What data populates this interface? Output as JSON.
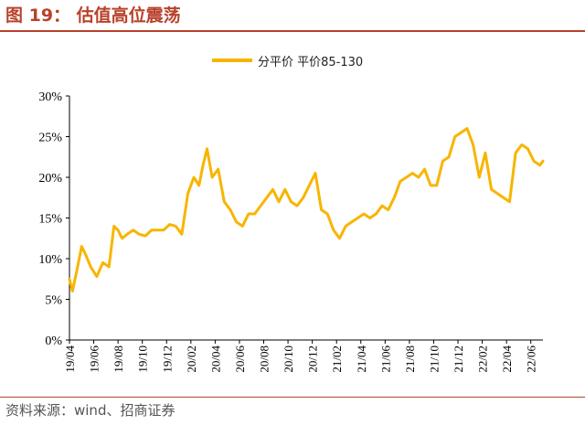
{
  "figure": {
    "title": "图 19： 估值高位震荡",
    "source": "资料来源：wind、招商证券"
  },
  "chart_data": {
    "type": "line",
    "title": "",
    "xlabel": "",
    "ylabel": "",
    "ylim": [
      0,
      30
    ],
    "yticks": [
      "0%",
      "5%",
      "10%",
      "15%",
      "20%",
      "25%",
      "30%"
    ],
    "xticks": [
      "19/04",
      "19/06",
      "19/08",
      "19/10",
      "19/12",
      "20/02",
      "20/04",
      "20/06",
      "20/08",
      "20/10",
      "20/12",
      "21/02",
      "21/04",
      "21/06",
      "21/08",
      "21/10",
      "21/12",
      "22/02",
      "22/04",
      "22/06"
    ],
    "grid": false,
    "legend_position": "top-center",
    "series": [
      {
        "name": "分平价 平价85-130",
        "color": "#f7b500",
        "x": [
          "19/04",
          "19/04",
          "19/05",
          "19/05",
          "19/05",
          "19/06",
          "19/06",
          "19/07",
          "19/07",
          "19/08",
          "19/08",
          "19/08",
          "19/09",
          "19/09",
          "19/10",
          "19/10",
          "19/11",
          "19/11",
          "19/12",
          "19/12",
          "20/01",
          "20/01",
          "20/02",
          "20/02",
          "20/03",
          "20/03",
          "20/03",
          "20/04",
          "20/04",
          "20/05",
          "20/05",
          "20/06",
          "20/06",
          "20/07",
          "20/07",
          "20/08",
          "20/08",
          "20/09",
          "20/09",
          "20/10",
          "20/10",
          "20/11",
          "20/11",
          "20/12",
          "20/12",
          "21/01",
          "21/01",
          "21/02",
          "21/02",
          "21/03",
          "21/03",
          "21/04",
          "21/04",
          "21/05",
          "21/05",
          "21/06",
          "21/06",
          "21/07",
          "21/07",
          "21/08",
          "21/08",
          "21/09",
          "21/09",
          "21/10",
          "21/10",
          "21/11",
          "21/11",
          "21/12",
          "21/12",
          "22/01",
          "22/01",
          "22/02",
          "22/02",
          "22/03",
          "22/03",
          "22/04",
          "22/04",
          "22/05",
          "22/05",
          "22/06",
          "22/06",
          "22/07",
          "22/07"
        ],
        "y": [
          7.5,
          6.0,
          9.0,
          11.5,
          10.5,
          9.0,
          7.8,
          9.5,
          9.0,
          14.0,
          13.5,
          12.5,
          13.0,
          13.5,
          13.0,
          12.8,
          13.5,
          13.5,
          13.5,
          14.2,
          14.0,
          13.0,
          18.0,
          20.0,
          19.0,
          21.5,
          23.5,
          20.0,
          21.0,
          17.0,
          16.0,
          14.5,
          14.0,
          15.5,
          15.5,
          16.5,
          17.5,
          18.5,
          17.0,
          18.5,
          17.0,
          16.5,
          17.5,
          19.0,
          20.5,
          16.0,
          15.5,
          13.5,
          12.5,
          14.0,
          14.5,
          15.0,
          15.5,
          15.0,
          15.5,
          16.5,
          16.0,
          17.5,
          19.5,
          20.0,
          20.5,
          20.0,
          21.0,
          19.0,
          19.0,
          22.0,
          22.5,
          25.0,
          25.5,
          26.0,
          24.0,
          20.0,
          23.0,
          18.5,
          18.0,
          17.5,
          17.0,
          23.0,
          24.0,
          23.5,
          22.0,
          21.5,
          22.0
        ]
      }
    ]
  }
}
